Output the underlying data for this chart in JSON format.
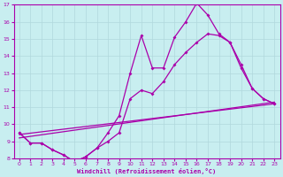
{
  "xlabel": "Windchill (Refroidissement éolien,°C)",
  "background_color": "#c8eef0",
  "grid_color": "#b0d8dc",
  "line_color": "#aa00aa",
  "xlim": [
    -0.5,
    23.5
  ],
  "ylim": [
    8,
    17
  ],
  "yticks": [
    8,
    9,
    10,
    11,
    12,
    13,
    14,
    15,
    16,
    17
  ],
  "xticks": [
    0,
    1,
    2,
    3,
    4,
    5,
    6,
    7,
    8,
    9,
    10,
    11,
    12,
    13,
    14,
    15,
    16,
    17,
    18,
    19,
    20,
    21,
    22,
    23
  ],
  "line1_x": [
    0,
    1,
    2,
    3,
    4,
    5,
    6,
    7,
    8,
    9,
    10,
    11,
    12,
    13,
    14,
    15,
    16,
    17,
    18,
    19,
    20,
    21,
    22,
    23
  ],
  "line1_y": [
    9.5,
    8.9,
    8.9,
    8.5,
    8.2,
    7.8,
    8.1,
    8.6,
    9.5,
    10.5,
    13.0,
    15.2,
    13.3,
    13.3,
    15.1,
    16.0,
    17.1,
    16.4,
    15.3,
    14.8,
    13.5,
    12.1,
    11.5,
    11.2
  ],
  "line2_x": [
    0,
    1,
    2,
    3,
    4,
    5,
    6,
    7,
    8,
    9,
    10,
    11,
    12,
    13,
    14,
    15,
    16,
    17,
    18,
    19,
    20,
    21,
    22,
    23
  ],
  "line2_y": [
    9.5,
    8.9,
    8.9,
    8.5,
    8.2,
    7.8,
    8.1,
    8.6,
    9.0,
    9.5,
    11.5,
    12.0,
    11.8,
    12.5,
    13.5,
    14.2,
    14.8,
    15.3,
    15.2,
    14.8,
    13.3,
    12.1,
    11.5,
    11.2
  ],
  "line3_x": [
    0,
    23
  ],
  "line3_y": [
    9.4,
    11.2
  ],
  "line4_x": [
    0,
    23
  ],
  "line4_y": [
    9.2,
    11.3
  ]
}
